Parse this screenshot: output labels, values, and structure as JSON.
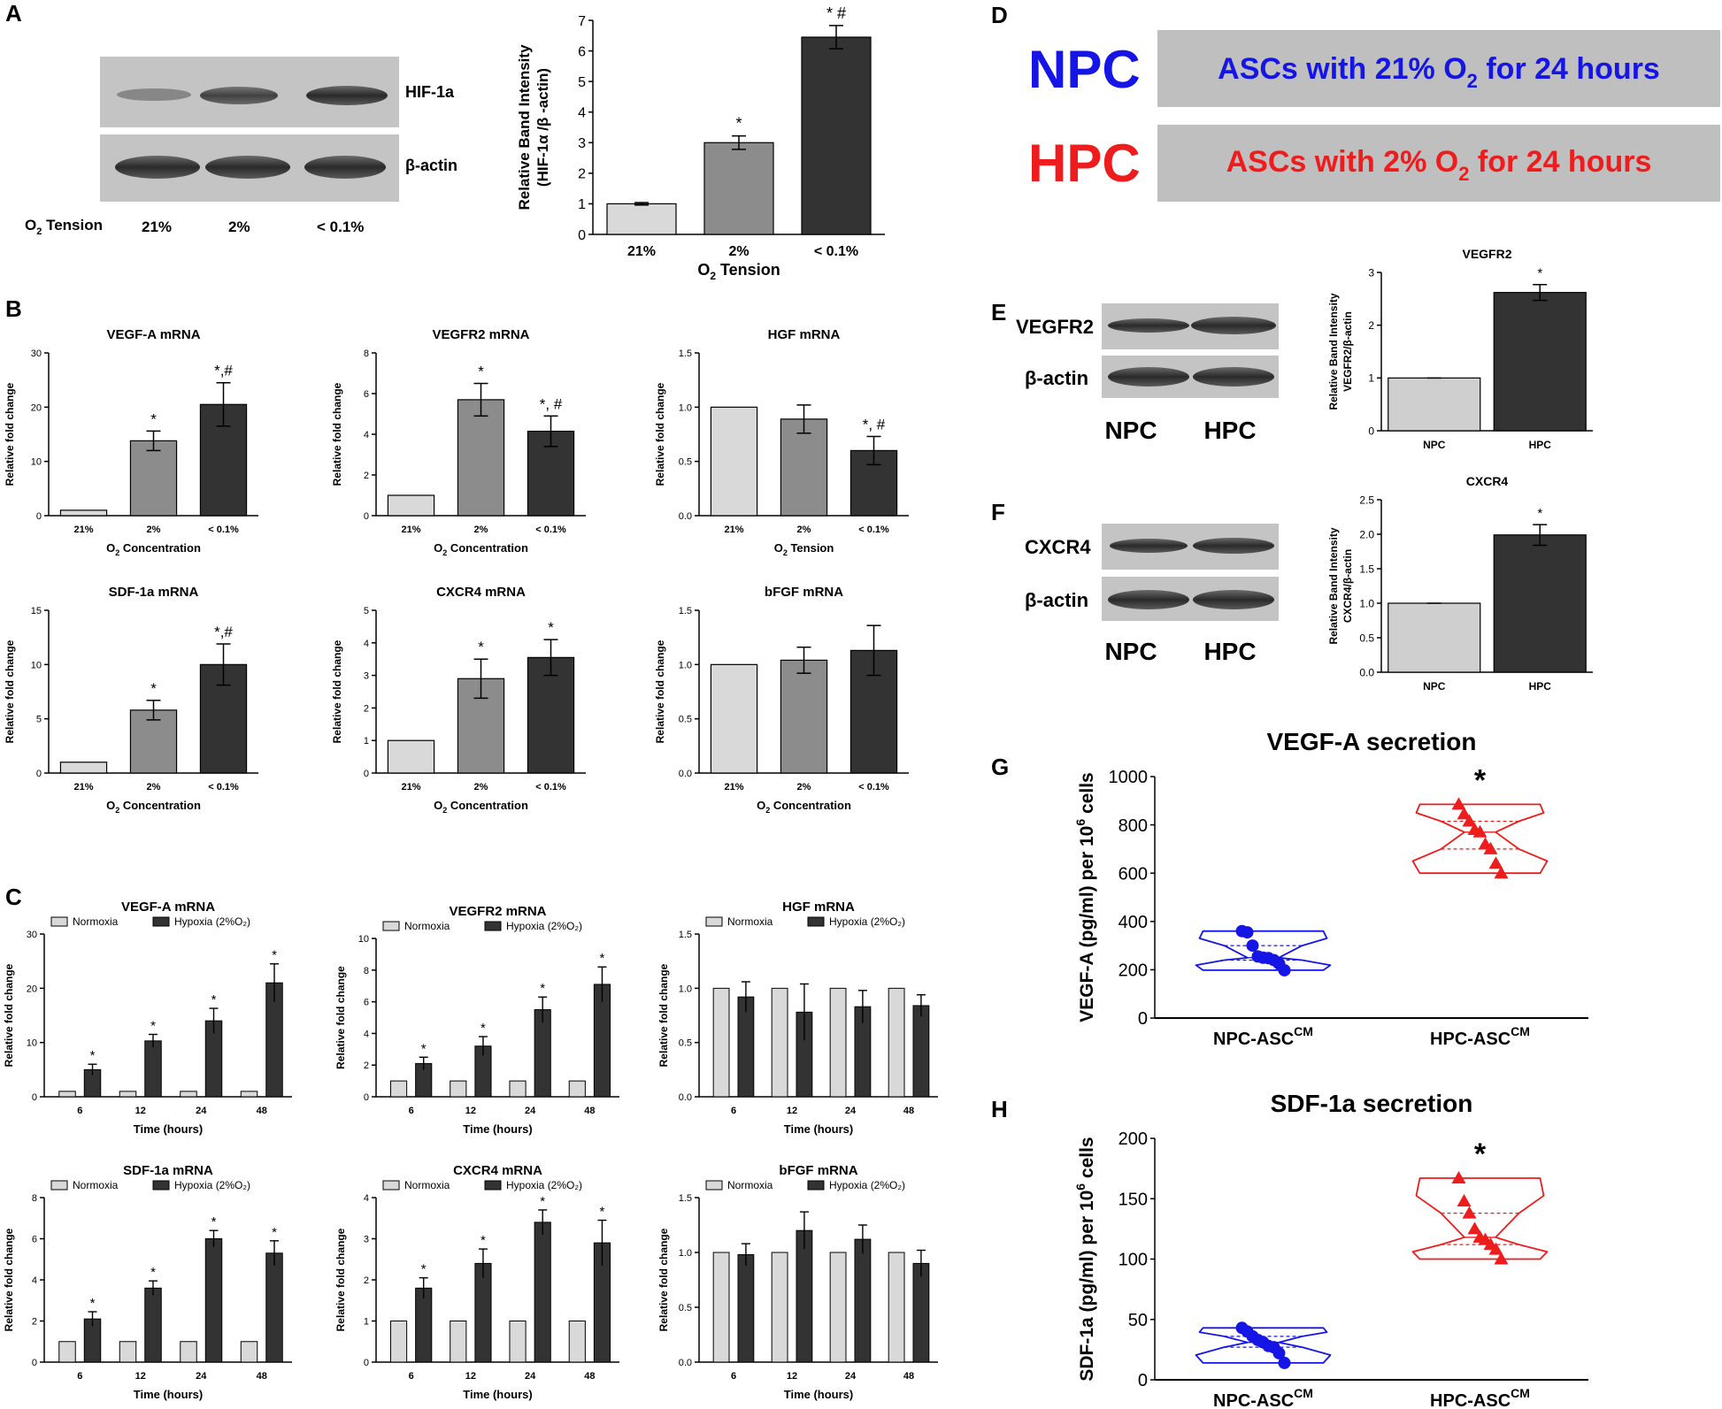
{
  "figure": {
    "domain_note": "multi-panel scientific figure"
  },
  "colors": {
    "c21": "#d9d9d9",
    "c2": "#8c8c8c",
    "c01": "#333333",
    "npc": "#cfcfcf",
    "hpc": "#333333",
    "npc_text": "#1515e6",
    "hpc_text": "#ee1c1c",
    "box_bg": "#bfbfbf"
  },
  "panel_letters": {
    "A": "A",
    "B": "B",
    "C": "C",
    "D": "D",
    "E": "E",
    "F": "F",
    "G": "G",
    "H": "H"
  },
  "panelA": {
    "blot_labels": [
      "HIF-1a",
      "β-actin"
    ],
    "o2_label": "O",
    "o2_sub": "2",
    "o2_label_rest": " Tension",
    "lane_labels": [
      "21%",
      "2%",
      "< 0.1%"
    ]
  },
  "panelD": {
    "rows": [
      {
        "tag": "NPC",
        "pre": "ASCs with 21% O",
        "sub": "2",
        "post": " for 24 hours"
      },
      {
        "tag": "HPC",
        "pre": "ASCs with 2% O",
        "sub": "2",
        "post": " for 24 hours"
      }
    ]
  },
  "panelE": {
    "blot_labels": [
      "VEGFR2",
      "β-actin"
    ],
    "lane_labels": [
      "NPC",
      "HPC"
    ]
  },
  "panelF": {
    "blot_labels": [
      "CXCR4",
      "β-actin"
    ],
    "lane_labels": [
      "NPC",
      "HPC"
    ]
  },
  "chart_data": [
    {
      "id": "A_chart",
      "type": "bar",
      "title": "",
      "categories": [
        "21%",
        "2%",
        "< 0.1%"
      ],
      "values": [
        1.0,
        3.0,
        6.45
      ],
      "errors": [
        0.04,
        0.22,
        0.38
      ],
      "annotations": [
        "",
        "*",
        "* #"
      ],
      "ylabel_lines": [
        "Relative Band Intensity",
        "(HIF-1α /β -actin)"
      ],
      "xlabel": "O₂ Tension",
      "ylim": [
        0,
        7
      ],
      "yticks": [
        0,
        1,
        2,
        3,
        4,
        5,
        6,
        7
      ]
    },
    {
      "id": "B1",
      "type": "bar",
      "title": "VEGF-A mRNA",
      "categories": [
        "21%",
        "2%",
        "< 0.1%"
      ],
      "values": [
        1.0,
        13.8,
        20.5
      ],
      "errors": [
        0,
        1.8,
        4.0
      ],
      "annotations": [
        "",
        "*",
        "*,#"
      ],
      "ylabel": "Relative fold change",
      "xlabel": "O₂ Concentration",
      "ylim": [
        0,
        30
      ],
      "yticks": [
        0,
        10,
        20,
        30
      ]
    },
    {
      "id": "B2",
      "type": "bar",
      "title": "VEGFR2 mRNA",
      "categories": [
        "21%",
        "2%",
        "< 0.1%"
      ],
      "values": [
        1.0,
        5.7,
        4.15
      ],
      "errors": [
        0,
        0.8,
        0.75
      ],
      "annotations": [
        "",
        "*",
        "*, #"
      ],
      "ylabel": "Relative fold change",
      "xlabel": "O₂ Concentration",
      "ylim": [
        0,
        8
      ],
      "yticks": [
        0,
        2,
        4,
        6,
        8
      ]
    },
    {
      "id": "B3",
      "type": "bar",
      "title": "HGF mRNA",
      "categories": [
        "21%",
        "2%",
        "< 0.1%"
      ],
      "values": [
        1.0,
        0.89,
        0.6
      ],
      "errors": [
        0,
        0.13,
        0.13
      ],
      "annotations": [
        "",
        "",
        "*,  #"
      ],
      "ylabel": "Relative fold change",
      "xlabel": "O₂ Tension",
      "ylim": [
        0,
        1.5
      ],
      "yticks": [
        "0.0",
        "0.5",
        "1.0",
        "1.5"
      ]
    },
    {
      "id": "B4",
      "type": "bar",
      "title": "SDF-1a mRNA",
      "categories": [
        "21%",
        "2%",
        "< 0.1%"
      ],
      "values": [
        1.0,
        5.8,
        10.0
      ],
      "errors": [
        0,
        0.9,
        1.9
      ],
      "annotations": [
        "",
        "*",
        "*,#"
      ],
      "ylabel": "Relative fold change",
      "xlabel": "O₂ Concentration",
      "ylim": [
        0,
        15
      ],
      "yticks": [
        0,
        5,
        10,
        15
      ]
    },
    {
      "id": "B5",
      "type": "bar",
      "title": "CXCR4 mRNA",
      "categories": [
        "21%",
        "2%",
        "< 0.1%"
      ],
      "values": [
        1.0,
        2.9,
        3.55
      ],
      "errors": [
        0,
        0.6,
        0.55
      ],
      "annotations": [
        "",
        "*",
        "*"
      ],
      "ylabel": "Relative fold change",
      "xlabel": "O₂ Concentration",
      "ylim": [
        0,
        5
      ],
      "yticks": [
        0,
        1,
        2,
        3,
        4,
        5
      ]
    },
    {
      "id": "B6",
      "type": "bar",
      "title": "bFGF mRNA",
      "categories": [
        "21%",
        "2%",
        "< 0.1%"
      ],
      "values": [
        1.0,
        1.04,
        1.13
      ],
      "errors": [
        0,
        0.12,
        0.23
      ],
      "annotations": [
        "",
        "",
        ""
      ],
      "ylabel": "Relative fold change",
      "xlabel": "O₂ Concentration",
      "ylim": [
        0,
        1.5
      ],
      "yticks": [
        "0.0",
        "0.5",
        "1.0",
        "1.5"
      ]
    },
    {
      "id": "C1",
      "type": "grouped-bar",
      "title": "VEGF-A mRNA",
      "categories": [
        "6",
        "12",
        "24",
        "48"
      ],
      "series": [
        {
          "name": "Normoxia",
          "values": [
            1,
            1,
            1,
            1
          ],
          "errors": [
            0,
            0,
            0,
            0
          ]
        },
        {
          "name": "Hypoxia (2%O₂)",
          "values": [
            5.0,
            10.3,
            14.0,
            21.0
          ],
          "errors": [
            1.0,
            1.2,
            2.3,
            3.5
          ]
        }
      ],
      "annotations": [
        "*",
        "*",
        "*",
        "*"
      ],
      "ylabel": "Relative fold change",
      "xlabel": "Time (hours)",
      "ylim": [
        0,
        30
      ],
      "yticks": [
        0,
        10,
        20,
        30
      ]
    },
    {
      "id": "C2",
      "type": "grouped-bar",
      "title": "VEGFR2 mRNA",
      "categories": [
        "6",
        "12",
        "24",
        "48"
      ],
      "series": [
        {
          "name": "Normoxia",
          "values": [
            1,
            1,
            1,
            1
          ],
          "errors": [
            0,
            0,
            0,
            0
          ]
        },
        {
          "name": "Hypoxia (2%O₂)",
          "values": [
            2.1,
            3.2,
            5.5,
            7.1
          ],
          "errors": [
            0.4,
            0.6,
            0.8,
            1.1
          ]
        }
      ],
      "annotations": [
        "*",
        "*",
        "*",
        "*"
      ],
      "ylabel": "Relative fold change",
      "xlabel": "Time (hours)",
      "ylim": [
        0,
        10
      ],
      "yticks": [
        0,
        2,
        4,
        6,
        8,
        10
      ]
    },
    {
      "id": "C3",
      "type": "grouped-bar",
      "title": "HGF mRNA",
      "categories": [
        "6",
        "12",
        "24",
        "48"
      ],
      "series": [
        {
          "name": "Normoxia",
          "values": [
            1,
            1,
            1,
            1
          ],
          "errors": [
            0,
            0,
            0,
            0
          ]
        },
        {
          "name": "Hypoxia (2%O₂)",
          "values": [
            0.92,
            0.78,
            0.83,
            0.84
          ],
          "errors": [
            0.14,
            0.26,
            0.15,
            0.1
          ]
        }
      ],
      "annotations": [
        "",
        "",
        "",
        ""
      ],
      "ylabel": "Relative fold change",
      "xlabel": "Time (hours)",
      "ylim": [
        0,
        1.5
      ],
      "yticks": [
        "0.0",
        "0.5",
        "1.0",
        "1.5"
      ]
    },
    {
      "id": "C4",
      "type": "grouped-bar",
      "title": "SDF-1a mRNA",
      "categories": [
        "6",
        "12",
        "24",
        "48"
      ],
      "series": [
        {
          "name": "Normoxia",
          "values": [
            1,
            1,
            1,
            1
          ],
          "errors": [
            0,
            0,
            0,
            0
          ]
        },
        {
          "name": "Hypoxia (2%O₂)",
          "values": [
            2.1,
            3.6,
            6.0,
            5.3
          ],
          "errors": [
            0.35,
            0.35,
            0.4,
            0.6
          ]
        }
      ],
      "annotations": [
        "*",
        "*",
        "*",
        "*"
      ],
      "ylabel": "Relative fold change",
      "xlabel": "Time (hours)",
      "ylim": [
        0,
        8
      ],
      "yticks": [
        0,
        2,
        4,
        6,
        8
      ]
    },
    {
      "id": "C5",
      "type": "grouped-bar",
      "title": "CXCR4 mRNA",
      "categories": [
        "6",
        "12",
        "24",
        "48"
      ],
      "series": [
        {
          "name": "Normoxia",
          "values": [
            1,
            1,
            1,
            1
          ],
          "errors": [
            0,
            0,
            0,
            0
          ]
        },
        {
          "name": "Hypoxia (2%O₂)",
          "values": [
            1.8,
            2.4,
            3.4,
            2.9
          ],
          "errors": [
            0.25,
            0.35,
            0.3,
            0.55
          ]
        }
      ],
      "annotations": [
        "*",
        "*",
        "*",
        "*"
      ],
      "ylabel": "Relative fold change",
      "xlabel": "Time (hours)",
      "ylim": [
        0,
        4
      ],
      "yticks": [
        0,
        1,
        2,
        3,
        4
      ]
    },
    {
      "id": "C6",
      "type": "grouped-bar",
      "title": "bFGF mRNA",
      "categories": [
        "6",
        "12",
        "24",
        "48"
      ],
      "series": [
        {
          "name": "Normoxia",
          "values": [
            1,
            1,
            1,
            1
          ],
          "errors": [
            0,
            0,
            0,
            0
          ]
        },
        {
          "name": "Hypoxia (2%O₂)",
          "values": [
            0.98,
            1.2,
            1.12,
            0.9
          ],
          "errors": [
            0.1,
            0.17,
            0.13,
            0.12
          ]
        }
      ],
      "annotations": [
        "",
        "",
        "",
        ""
      ],
      "ylabel": "Relative fold change",
      "xlabel": "Time (hours)",
      "ylim": [
        0,
        1.5
      ],
      "yticks": [
        "0.0",
        "0.5",
        "1.0",
        "1.5"
      ]
    },
    {
      "id": "E_chart",
      "type": "bar",
      "title": "VEGFR2",
      "categories": [
        "NPC",
        "HPC"
      ],
      "values": [
        1.0,
        2.62
      ],
      "errors": [
        0,
        0.15
      ],
      "annotations": [
        "",
        "*"
      ],
      "ylabel_lines": [
        "Relative Band Intensity",
        "VEGFR2/β-actin"
      ],
      "xlabel": "",
      "ylim": [
        0,
        3
      ],
      "yticks": [
        0,
        1,
        2,
        3
      ]
    },
    {
      "id": "F_chart",
      "type": "bar",
      "title": "CXCR4",
      "categories": [
        "NPC",
        "HPC"
      ],
      "values": [
        1.0,
        1.99
      ],
      "errors": [
        0,
        0.15
      ],
      "annotations": [
        "",
        "*"
      ],
      "ylabel_lines": [
        "Relative Band Intensity",
        "CXCR4/β-actin"
      ],
      "xlabel": "",
      "ylim": [
        0,
        2.5
      ],
      "yticks": [
        "0.0",
        "0.5",
        "1.0",
        "1.5",
        "2.0",
        "2.5"
      ]
    },
    {
      "id": "G_chart",
      "type": "violin-scatter",
      "title": "VEGF-A secretion",
      "categories": [
        "NPC-ASC",
        "HPC-ASC"
      ],
      "cat_sup": "CM",
      "series": [
        {
          "name": "NPC-ASC",
          "points": [
            360,
            355,
            300,
            255,
            250,
            248,
            240,
            225,
            198
          ]
        },
        {
          "name": "HPC-ASC",
          "points": [
            885,
            845,
            815,
            780,
            770,
            720,
            700,
            640,
            600
          ]
        }
      ],
      "annotations": [
        "",
        "*"
      ],
      "ylabel": "VEGF-A (pg/ml) per 10",
      "ylabel_sup": "6",
      "ylabel_rest": " cells",
      "ylim": [
        0,
        1000
      ],
      "yticks": [
        0,
        200,
        400,
        600,
        800,
        1000
      ]
    },
    {
      "id": "H_chart",
      "type": "violin-scatter",
      "title": "SDF-1a secretion",
      "categories": [
        "NPC-ASC",
        "HPC-ASC"
      ],
      "cat_sup": "CM",
      "series": [
        {
          "name": "NPC-ASC",
          "points": [
            43,
            40,
            36,
            33,
            31,
            28,
            27,
            22,
            14
          ]
        },
        {
          "name": "HPC-ASC",
          "points": [
            167,
            148,
            138,
            125,
            118,
            116,
            112,
            108,
            100
          ]
        }
      ],
      "annotations": [
        "",
        "*"
      ],
      "ylabel": "SDF-1a (pg/ml) per 10",
      "ylabel_sup": "6",
      "ylabel_rest": " cells",
      "ylim": [
        0,
        200
      ],
      "yticks": [
        0,
        50,
        100,
        150,
        200
      ]
    }
  ]
}
